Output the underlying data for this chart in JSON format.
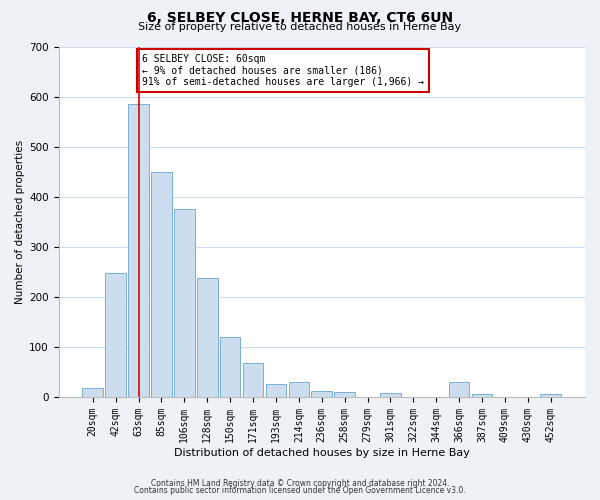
{
  "title": "6, SELBEY CLOSE, HERNE BAY, CT6 6UN",
  "subtitle": "Size of property relative to detached houses in Herne Bay",
  "xlabel": "Distribution of detached houses by size in Herne Bay",
  "ylabel": "Number of detached properties",
  "bar_labels": [
    "20sqm",
    "42sqm",
    "63sqm",
    "85sqm",
    "106sqm",
    "128sqm",
    "150sqm",
    "171sqm",
    "193sqm",
    "214sqm",
    "236sqm",
    "258sqm",
    "279sqm",
    "301sqm",
    "322sqm",
    "344sqm",
    "366sqm",
    "387sqm",
    "409sqm",
    "430sqm",
    "452sqm"
  ],
  "bar_values": [
    18,
    248,
    585,
    450,
    375,
    238,
    120,
    67,
    25,
    30,
    12,
    10,
    0,
    8,
    0,
    0,
    30,
    5,
    0,
    0,
    5
  ],
  "bar_color": "#ccdded",
  "bar_edgecolor": "#7ab0d4",
  "vline_x_index": 2,
  "vline_color": "#dd0000",
  "annotation_line1": "6 SELBEY CLOSE: 60sqm",
  "annotation_line2": "← 9% of detached houses are smaller (186)",
  "annotation_line3": "91% of semi-detached houses are larger (1,966) →",
  "annotation_box_edgecolor": "#cc0000",
  "annotation_box_facecolor": "#ffffff",
  "ylim": [
    0,
    700
  ],
  "yticks": [
    0,
    100,
    200,
    300,
    400,
    500,
    600,
    700
  ],
  "footer_line1": "Contains HM Land Registry data © Crown copyright and database right 2024.",
  "footer_line2": "Contains public sector information licensed under the Open Government Licence v3.0.",
  "background_color": "#eef2f7",
  "plot_bg_color": "#ffffff",
  "grid_color": "#ccdded",
  "title_fontsize": 10,
  "subtitle_fontsize": 8,
  "xlabel_fontsize": 8,
  "ylabel_fontsize": 7.5,
  "tick_fontsize": 7,
  "annotation_fontsize": 7,
  "footer_fontsize": 5.5
}
